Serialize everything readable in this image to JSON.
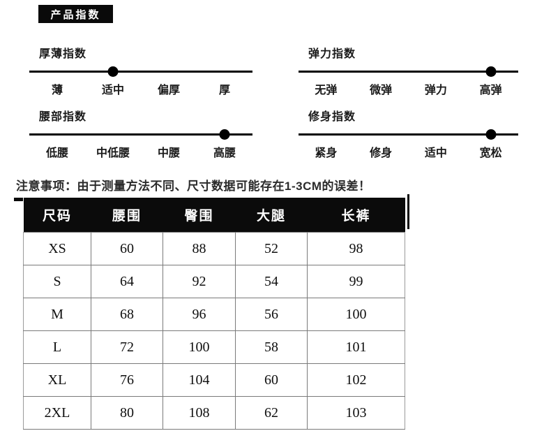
{
  "badge": {
    "label": "产品指数"
  },
  "sliders": [
    {
      "title": "厚薄指数",
      "labels": [
        "薄",
        "适中",
        "偏厚",
        "厚"
      ],
      "active_index": 1,
      "active_label": "适中"
    },
    {
      "title": "弹力指数",
      "labels": [
        "无弹",
        "微弹",
        "弹力",
        "高弹"
      ],
      "active_index": 3,
      "active_label": "高弹"
    },
    {
      "title": "腰部指数",
      "labels": [
        "低腰",
        "中低腰",
        "中腰",
        "高腰"
      ],
      "active_index": 3,
      "active_label": "高腰"
    },
    {
      "title": "修身指数",
      "labels": [
        "紧身",
        "修身",
        "适中",
        "宽松"
      ],
      "active_index": 3,
      "active_label": "宽松"
    }
  ],
  "notice": "注意事项：由于测量方法不同、尺寸数据可能存在1-3CM的误差！",
  "size_table": {
    "headers": [
      "尺码",
      "腰围",
      "臀围",
      "大腿",
      "长裤"
    ],
    "rows": [
      [
        "XS",
        "60",
        "88",
        "52",
        "98"
      ],
      [
        "S",
        "64",
        "92",
        "54",
        "99"
      ],
      [
        "M",
        "68",
        "96",
        "56",
        "100"
      ],
      [
        "L",
        "72",
        "100",
        "58",
        "101"
      ],
      [
        "XL",
        "76",
        "104",
        "60",
        "102"
      ],
      [
        "2XL",
        "80",
        "108",
        "62",
        "103"
      ]
    ]
  },
  "colors": {
    "accent_black": "#0a0a0a",
    "text": "#1a1a1a",
    "table_border": "#7a7a7a",
    "background": "#ffffff"
  }
}
